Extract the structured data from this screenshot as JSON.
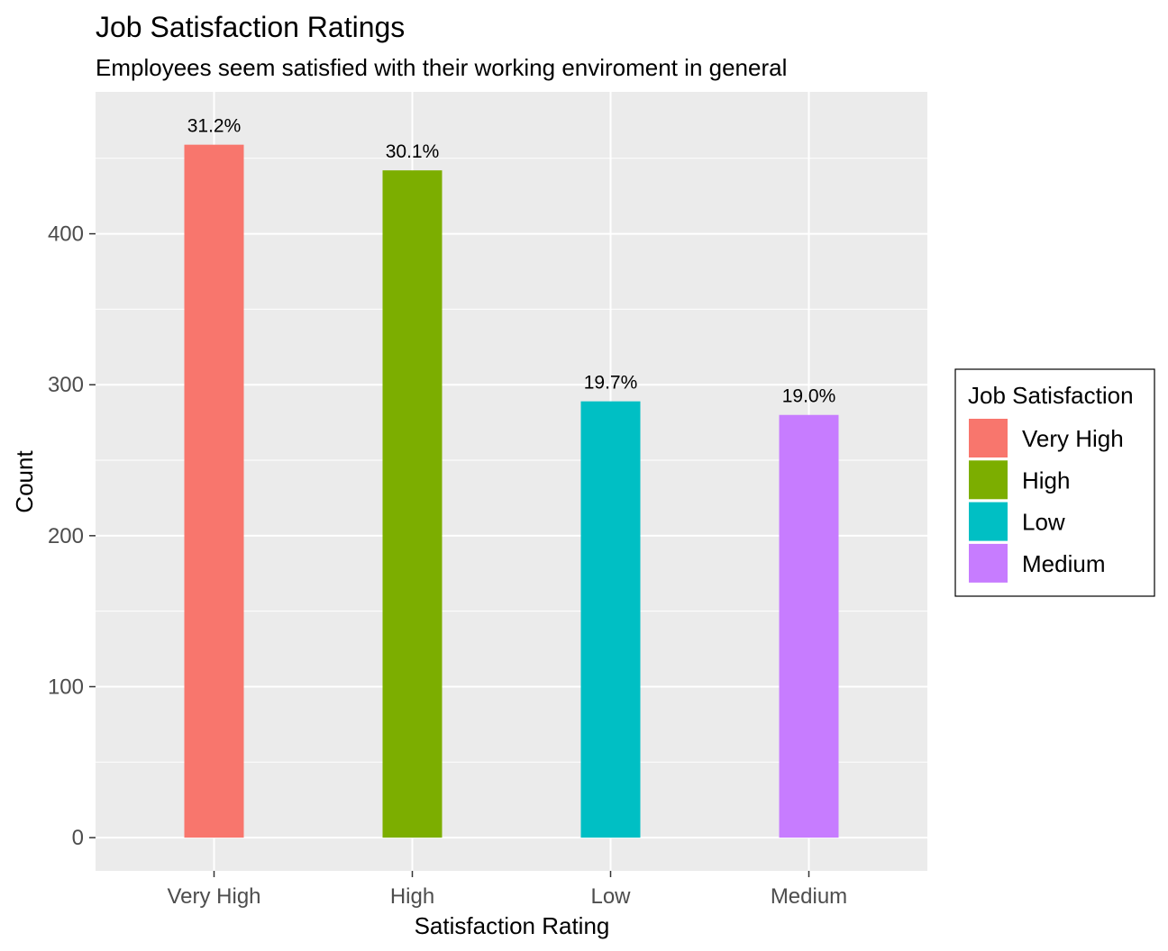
{
  "chart_data": {
    "type": "bar",
    "title": "Job Satisfaction Ratings",
    "subtitle": "Employees seem satisfied with their working enviroment in general",
    "xlabel": "Satisfaction Rating",
    "ylabel": "Count",
    "categories": [
      "Very High",
      "High",
      "Low",
      "Medium"
    ],
    "values": [
      459,
      442,
      289,
      280
    ],
    "data_labels": [
      "31.2%",
      "30.1%",
      "19.7%",
      "19.0%"
    ],
    "colors": [
      "#F8766D",
      "#7CAE00",
      "#00BFC4",
      "#C77CFF"
    ],
    "ylim": [
      -22,
      494
    ],
    "y_ticks": [
      0,
      100,
      200,
      300,
      400
    ],
    "y_minor_ticks": [
      50,
      150,
      250,
      350,
      450
    ],
    "grid": true,
    "panel_background": "#EBEBEB",
    "gridline_color": "#FFFFFF",
    "legend": {
      "title": "Job Satisfaction",
      "position": "right",
      "items": [
        "Very High",
        "High",
        "Low",
        "Medium"
      ]
    }
  }
}
